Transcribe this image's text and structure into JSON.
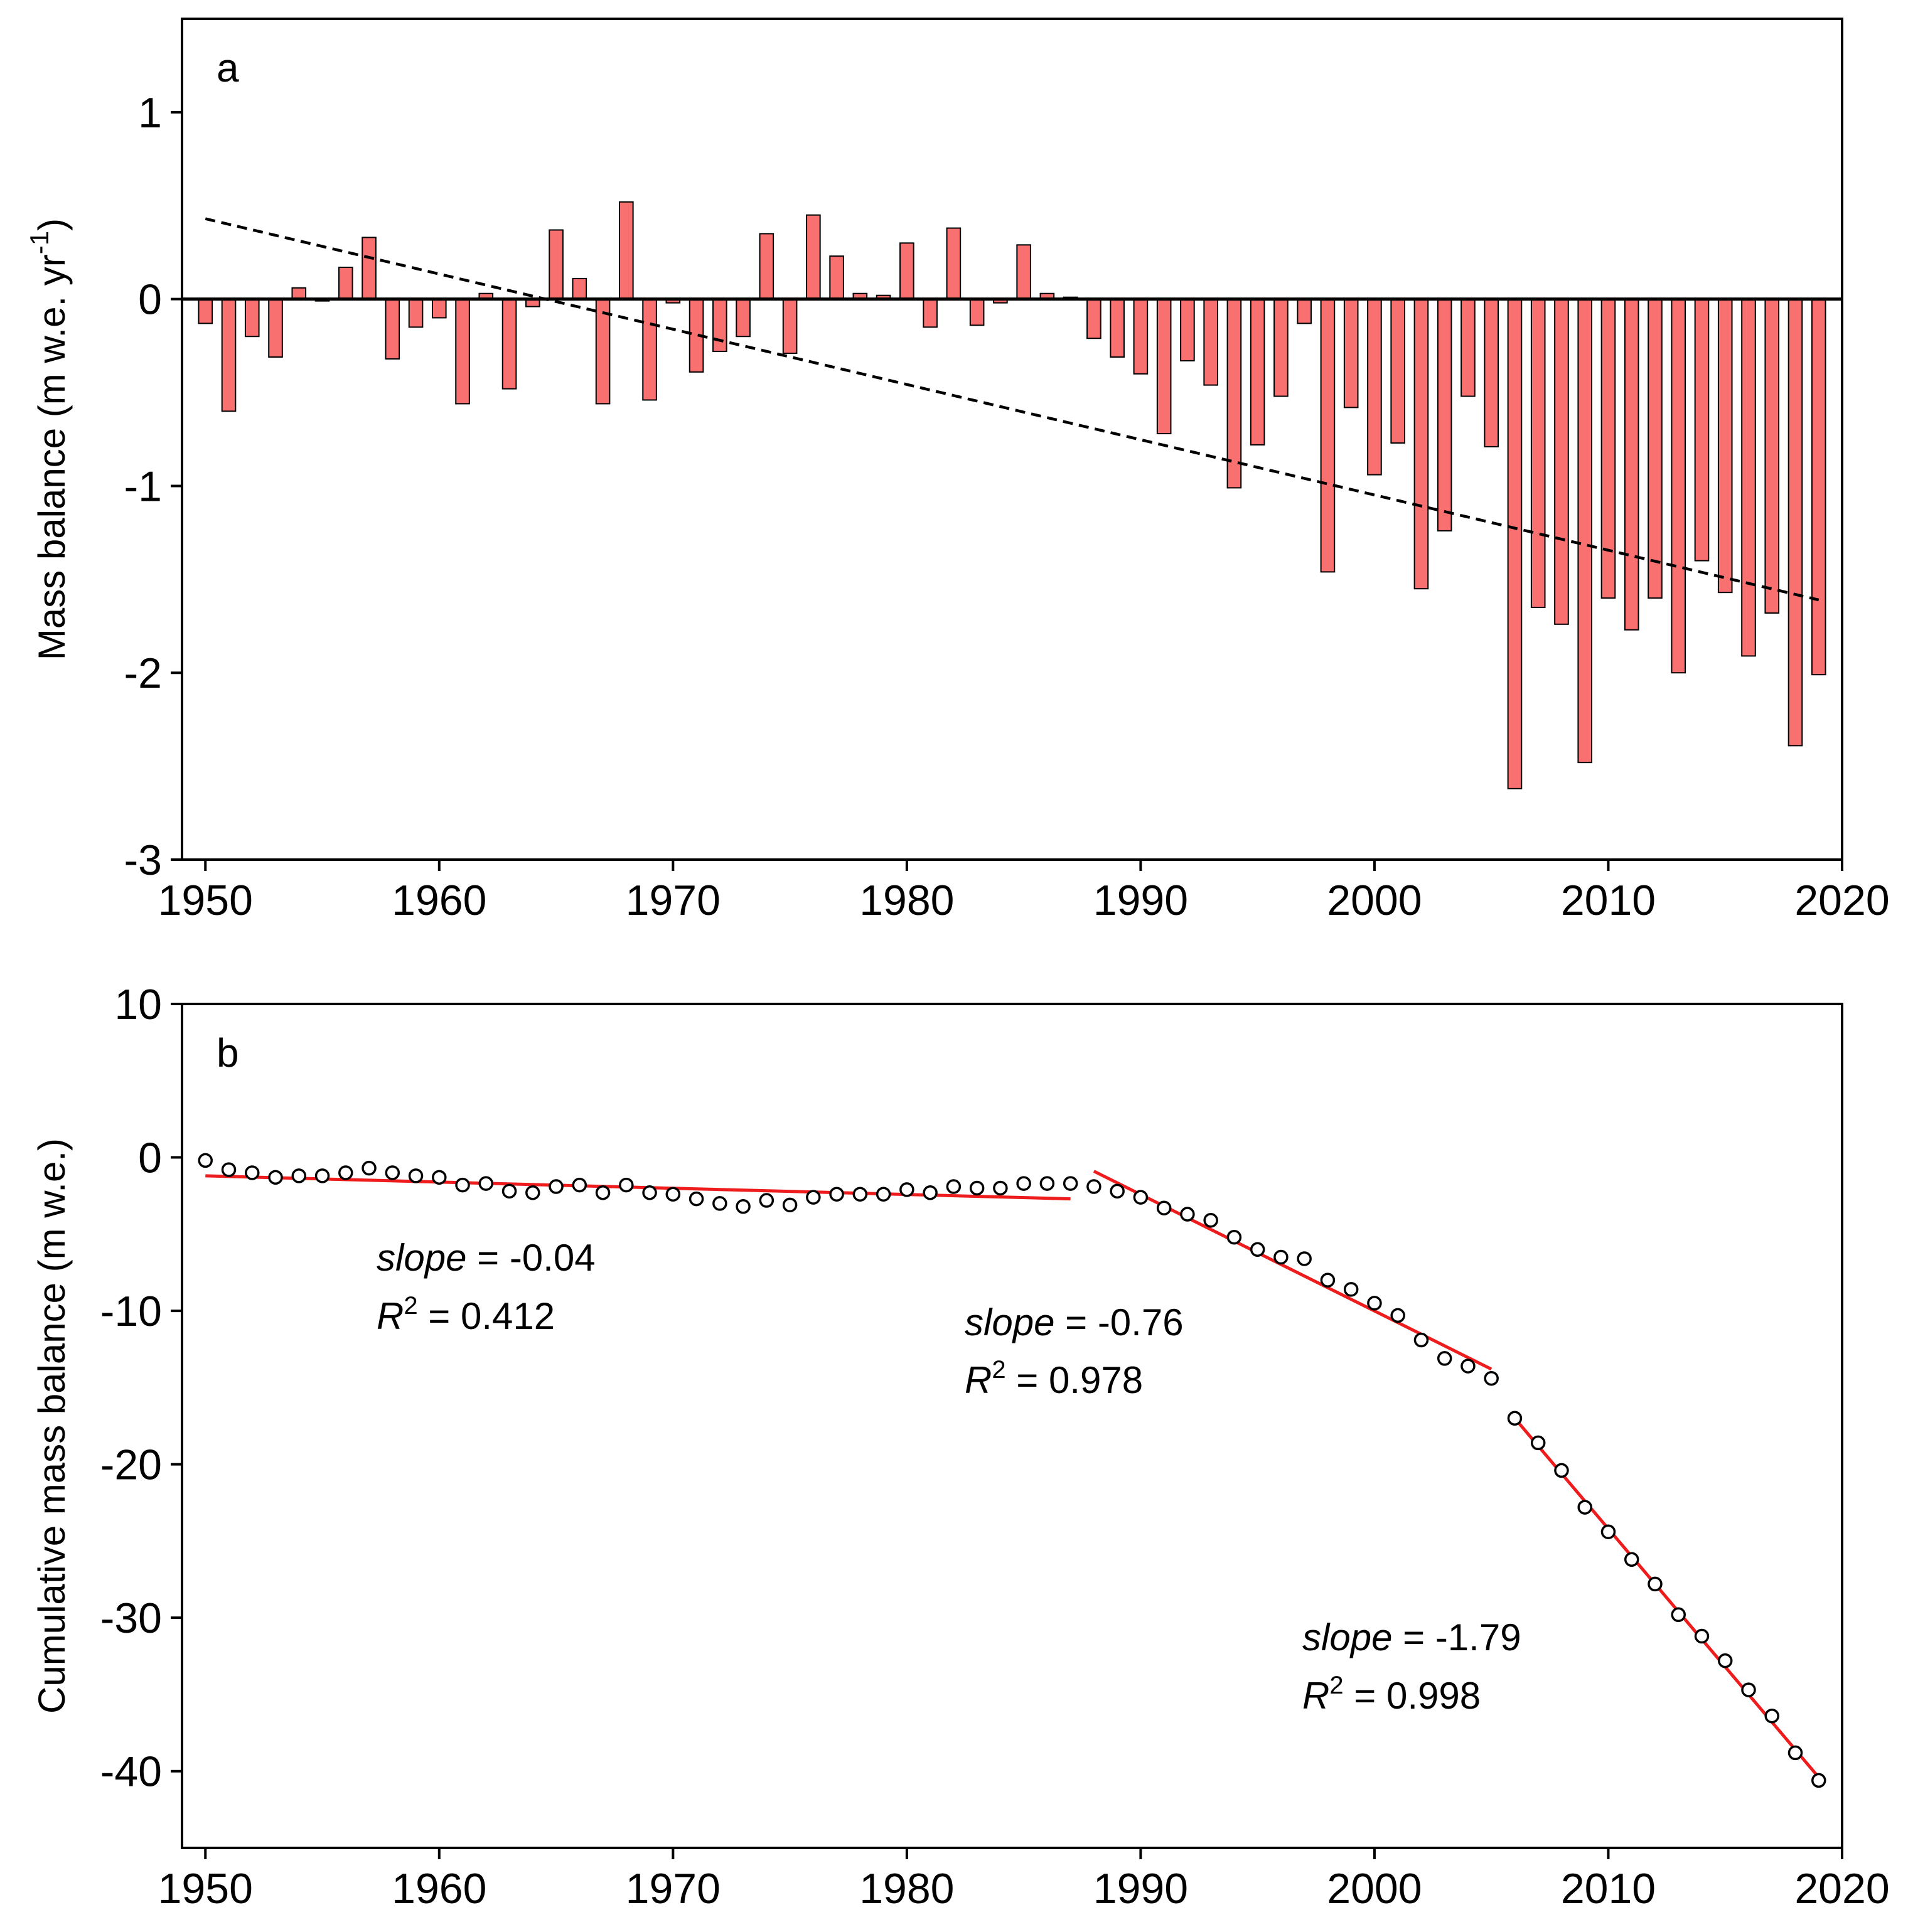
{
  "chart_data": [
    {
      "type": "bar",
      "panel_label": "a",
      "ylabel": "Mass balance (m w.e. yr",
      "ylabel_sup": "-1",
      "ylabel_close": ")",
      "xlabel": "",
      "xlim": [
        1949,
        2020
      ],
      "ylim": [
        -3,
        1.5
      ],
      "xticks": [
        1950,
        1960,
        1970,
        1980,
        1990,
        2000,
        2010,
        2020
      ],
      "yticks": [
        -3,
        -2,
        -1,
        0,
        1
      ],
      "bar_color": "#f87070",
      "x": [
        1950,
        1951,
        1952,
        1953,
        1954,
        1955,
        1956,
        1957,
        1958,
        1959,
        1960,
        1961,
        1962,
        1963,
        1964,
        1965,
        1966,
        1967,
        1968,
        1969,
        1970,
        1971,
        1972,
        1973,
        1974,
        1975,
        1976,
        1977,
        1978,
        1979,
        1980,
        1981,
        1982,
        1983,
        1984,
        1985,
        1986,
        1987,
        1988,
        1989,
        1990,
        1991,
        1992,
        1993,
        1994,
        1995,
        1996,
        1997,
        1998,
        1999,
        2000,
        2001,
        2002,
        2003,
        2004,
        2005,
        2006,
        2007,
        2008,
        2009,
        2010,
        2011,
        2012,
        2013,
        2014,
        2015,
        2016,
        2017,
        2018,
        2019
      ],
      "values": [
        -0.13,
        -0.6,
        -0.2,
        -0.31,
        0.06,
        -0.01,
        0.17,
        0.33,
        -0.32,
        -0.15,
        -0.1,
        -0.56,
        0.03,
        -0.48,
        -0.04,
        0.37,
        0.11,
        -0.56,
        0.52,
        -0.54,
        -0.02,
        -0.39,
        -0.28,
        -0.2,
        0.35,
        -0.29,
        0.45,
        0.23,
        0.03,
        0.02,
        0.3,
        -0.15,
        0.38,
        -0.14,
        -0.02,
        0.29,
        0.03,
        0.01,
        -0.21,
        -0.31,
        -0.4,
        -0.72,
        -0.33,
        -0.46,
        -1.01,
        -0.78,
        -0.52,
        -0.13,
        -1.46,
        -0.58,
        -0.94,
        -0.77,
        -1.55,
        -1.24,
        -0.52,
        -0.79,
        -2.62,
        -1.65,
        -1.74,
        -2.48,
        -1.6,
        -1.77,
        -1.6,
        -2.0,
        -1.4,
        -1.57,
        -1.91,
        -1.68,
        -2.39,
        -2.01
      ],
      "trend": {
        "x": [
          1950,
          2019
        ],
        "y": [
          0.43,
          -1.61
        ],
        "style": "dashed"
      }
    },
    {
      "type": "scatter",
      "panel_label": "b",
      "ylabel": "Cumulative mass balance (m w.e.)",
      "xlabel": "",
      "xlim": [
        1949,
        2020
      ],
      "ylim": [
        -45,
        10
      ],
      "xticks": [
        1950,
        1960,
        1970,
        1980,
        1990,
        2000,
        2010,
        2020
      ],
      "yticks": [
        -40,
        -30,
        -20,
        -10,
        0,
        10
      ],
      "fit_color": "#ee1c1c",
      "x": [
        1950,
        1951,
        1952,
        1953,
        1954,
        1955,
        1956,
        1957,
        1958,
        1959,
        1960,
        1961,
        1962,
        1963,
        1964,
        1965,
        1966,
        1967,
        1968,
        1969,
        1970,
        1971,
        1972,
        1973,
        1974,
        1975,
        1976,
        1977,
        1978,
        1979,
        1980,
        1981,
        1982,
        1983,
        1984,
        1985,
        1986,
        1987,
        1988,
        1989,
        1990,
        1991,
        1992,
        1993,
        1994,
        1995,
        1996,
        1997,
        1998,
        1999,
        2000,
        2001,
        2002,
        2003,
        2004,
        2005,
        2006,
        2007,
        2008,
        2009,
        2010,
        2011,
        2012,
        2013,
        2014,
        2015,
        2016,
        2017,
        2018,
        2019
      ],
      "y": [
        -0.2,
        -0.8,
        -1.0,
        -1.3,
        -1.2,
        -1.2,
        -1.0,
        -0.7,
        -1.0,
        -1.2,
        -1.3,
        -1.8,
        -1.7,
        -2.2,
        -2.3,
        -1.9,
        -1.8,
        -2.3,
        -1.8,
        -2.3,
        -2.4,
        -2.7,
        -3.0,
        -3.2,
        -2.8,
        -3.1,
        -2.6,
        -2.4,
        -2.4,
        -2.4,
        -2.1,
        -2.3,
        -1.9,
        -2.0,
        -2.0,
        -1.7,
        -1.7,
        -1.7,
        -1.9,
        -2.2,
        -2.6,
        -3.3,
        -3.7,
        -4.1,
        -5.2,
        -6.0,
        -6.5,
        -6.6,
        -8.0,
        -8.6,
        -9.5,
        -10.3,
        -11.9,
        -13.1,
        -13.6,
        -14.4,
        -17.0,
        -18.6,
        -20.4,
        -22.8,
        -24.4,
        -26.2,
        -27.8,
        -29.8,
        -31.2,
        -32.8,
        -34.7,
        -36.4,
        -38.8,
        -40.6
      ],
      "fits": [
        {
          "x": [
            1950,
            1987
          ],
          "y": [
            -1.2,
            -2.7
          ],
          "slope_label": "slope",
          "slope_value": " = -0.04",
          "r2_label": "R",
          "r2_sup": "2",
          "r2_value": " = 0.412"
        },
        {
          "x": [
            1988,
            2005
          ],
          "y": [
            -0.9,
            -13.8
          ],
          "slope_label": "slope",
          "slope_value": " = -0.76",
          "r2_label": "R",
          "r2_sup": "2",
          "r2_value": " = 0.978"
        },
        {
          "x": [
            2006,
            2019
          ],
          "y": [
            -17.0,
            -40.4
          ],
          "slope_label": "slope",
          "slope_value": " = -1.79",
          "r2_label": "R",
          "r2_sup": "2",
          "r2_value": " = 0.998"
        }
      ]
    }
  ]
}
